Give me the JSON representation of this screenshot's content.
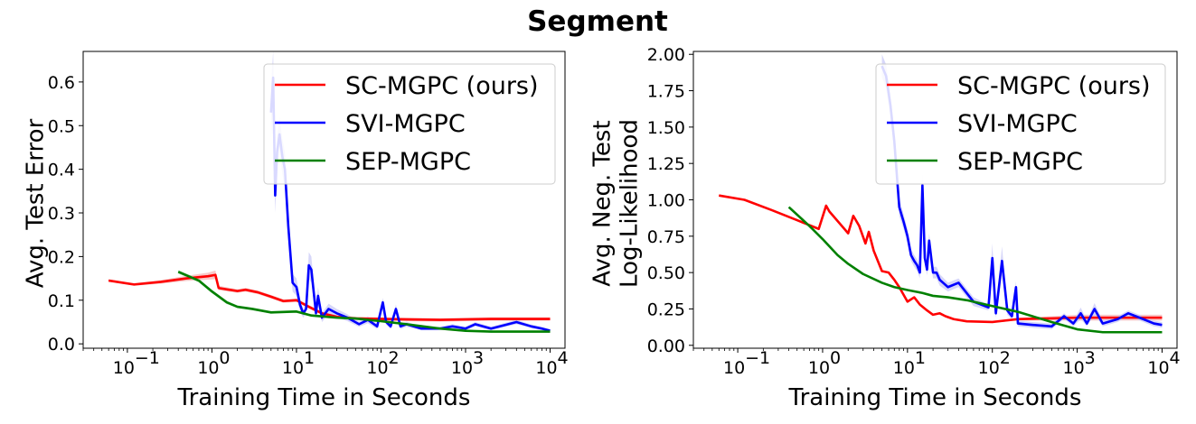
{
  "figure": {
    "title": "Segment"
  },
  "colors": {
    "sc": "#ff0000",
    "svi": "#0000ff",
    "sep": "#008000",
    "sc_band": "#f4b6b6",
    "svi_band": "#c9c9f7",
    "sep_band": "#b8dcb8"
  },
  "chart_data": [
    {
      "type": "line",
      "xlabel": "Training Time in Seconds",
      "ylabel_lines": [
        "Avg. Test Error"
      ],
      "xscale": "log",
      "xlim": [
        0.03,
        15000
      ],
      "ylim": [
        -0.01,
        0.67
      ],
      "yticks": [
        0.0,
        0.1,
        0.2,
        0.3,
        0.4,
        0.5,
        0.6
      ],
      "ytick_labels": [
        "0.0",
        "0.1",
        "0.2",
        "0.3",
        "0.4",
        "0.5",
        "0.6"
      ],
      "xticks": [
        0.1,
        1,
        10,
        100,
        1000,
        10000
      ],
      "xtick_labels": [
        "10",
        "10",
        "10",
        "10",
        "10",
        "10"
      ],
      "xtick_exponents": [
        "−1",
        "0",
        "1",
        "2",
        "3",
        "4"
      ],
      "legend": {
        "position": "top-right"
      },
      "series": [
        {
          "name": "SC-MGPC (ours)",
          "color": "#ff0000",
          "band_color": "#f4b6b6",
          "x": [
            0.06,
            0.12,
            0.25,
            0.5,
            0.9,
            1.1,
            1.2,
            2.0,
            2.5,
            3.5,
            5,
            7,
            10,
            14,
            20,
            30,
            50,
            100,
            200,
            500,
            1000,
            2000,
            5000,
            10000
          ],
          "y": [
            0.145,
            0.136,
            0.142,
            0.15,
            0.155,
            0.158,
            0.128,
            0.121,
            0.124,
            0.118,
            0.108,
            0.098,
            0.1,
            0.085,
            0.07,
            0.062,
            0.058,
            0.057,
            0.056,
            0.055,
            0.056,
            0.057,
            0.057,
            0.057
          ],
          "band": [
            0.003,
            0.003,
            0.004,
            0.006,
            0.008,
            0.01,
            0.005,
            0.004,
            0.004,
            0.004,
            0.004,
            0.004,
            0.004,
            0.004,
            0.004,
            0.004,
            0.004,
            0.004,
            0.004,
            0.004,
            0.004,
            0.004,
            0.004,
            0.004
          ]
        },
        {
          "name": "SVI-MGPC",
          "color": "#0000ff",
          "band_color": "#c9c9f7",
          "x": [
            5.0,
            5.3,
            5.6,
            5.9,
            6.3,
            6.8,
            7.3,
            8,
            9,
            10,
            11,
            12,
            13,
            14,
            15,
            17,
            18,
            20,
            24,
            30,
            40,
            55,
            70,
            90,
            105,
            115,
            130,
            150,
            170,
            200,
            300,
            500,
            700,
            1000,
            1300,
            2000,
            4000,
            6000,
            8000,
            10000
          ],
          "y": [
            0.53,
            0.61,
            0.34,
            0.44,
            0.48,
            0.43,
            0.4,
            0.27,
            0.14,
            0.13,
            0.09,
            0.07,
            0.08,
            0.18,
            0.17,
            0.07,
            0.11,
            0.06,
            0.08,
            0.07,
            0.06,
            0.045,
            0.055,
            0.04,
            0.095,
            0.05,
            0.04,
            0.08,
            0.04,
            0.045,
            0.035,
            0.035,
            0.04,
            0.035,
            0.045,
            0.035,
            0.05,
            0.04,
            0.035,
            0.03
          ],
          "band": [
            0.06,
            0.06,
            0.04,
            0.04,
            0.04,
            0.04,
            0.04,
            0.03,
            0.02,
            0.02,
            0.015,
            0.01,
            0.01,
            0.03,
            0.03,
            0.012,
            0.02,
            0.01,
            0.012,
            0.01,
            0.008,
            0.006,
            0.008,
            0.006,
            0.01,
            0.006,
            0.006,
            0.01,
            0.006,
            0.006,
            0.004,
            0.004,
            0.005,
            0.004,
            0.005,
            0.004,
            0.005,
            0.004,
            0.004,
            0.004
          ]
        },
        {
          "name": "SEP-MGPC",
          "color": "#008000",
          "band_color": "#b8dcb8",
          "x": [
            0.4,
            0.7,
            1.0,
            1.5,
            2.0,
            3.0,
            5.0,
            7.0,
            10,
            15,
            20,
            30,
            50,
            100,
            200,
            500,
            1000,
            2000,
            5000,
            10000
          ],
          "y": [
            0.165,
            0.145,
            0.12,
            0.095,
            0.085,
            0.08,
            0.072,
            0.073,
            0.074,
            0.065,
            0.063,
            0.06,
            0.058,
            0.052,
            0.045,
            0.035,
            0.03,
            0.028,
            0.028,
            0.028
          ],
          "band": [
            0.004,
            0.004,
            0.004,
            0.004,
            0.003,
            0.003,
            0.003,
            0.003,
            0.003,
            0.003,
            0.003,
            0.003,
            0.003,
            0.003,
            0.003,
            0.003,
            0.002,
            0.002,
            0.002,
            0.002
          ]
        }
      ]
    },
    {
      "type": "line",
      "xlabel": "Training Time in Seconds",
      "ylabel_lines": [
        "Avg. Neg. Test",
        "Log-Likelihood"
      ],
      "xscale": "log",
      "xlim": [
        0.03,
        15000
      ],
      "ylim": [
        -0.02,
        2.02
      ],
      "yticks": [
        0.0,
        0.25,
        0.5,
        0.75,
        1.0,
        1.25,
        1.5,
        1.75,
        2.0
      ],
      "ytick_labels": [
        "0.00",
        "0.25",
        "0.50",
        "0.75",
        "1.00",
        "1.25",
        "1.50",
        "1.75",
        "2.00"
      ],
      "xticks": [
        0.1,
        1,
        10,
        100,
        1000,
        10000
      ],
      "xtick_labels": [
        "10",
        "10",
        "10",
        "10",
        "10",
        "10"
      ],
      "xtick_exponents": [
        "−1",
        "0",
        "1",
        "2",
        "3",
        "4"
      ],
      "legend": {
        "position": "top-right"
      },
      "series": [
        {
          "name": "SC-MGPC (ours)",
          "color": "#ff0000",
          "band_color": "#f4b6b6",
          "x": [
            0.06,
            0.12,
            0.25,
            0.5,
            0.9,
            1.1,
            1.2,
            2.0,
            2.3,
            2.7,
            3.2,
            3.5,
            4.0,
            5.0,
            6.0,
            7.0,
            8.0,
            10,
            12,
            14,
            17,
            20,
            24,
            28,
            35,
            50,
            100,
            200,
            500,
            1000,
            2000,
            5000,
            10000
          ],
          "y": [
            1.03,
            1.0,
            0.93,
            0.86,
            0.8,
            0.96,
            0.92,
            0.77,
            0.89,
            0.82,
            0.7,
            0.78,
            0.65,
            0.51,
            0.5,
            0.45,
            0.4,
            0.3,
            0.33,
            0.28,
            0.24,
            0.21,
            0.22,
            0.2,
            0.18,
            0.165,
            0.16,
            0.18,
            0.185,
            0.19,
            0.19,
            0.19,
            0.19
          ],
          "band": [
            0.004,
            0.004,
            0.004,
            0.004,
            0.004,
            0.006,
            0.006,
            0.006,
            0.006,
            0.006,
            0.006,
            0.006,
            0.006,
            0.006,
            0.006,
            0.006,
            0.006,
            0.006,
            0.006,
            0.006,
            0.005,
            0.005,
            0.005,
            0.005,
            0.005,
            0.005,
            0.005,
            0.01,
            0.015,
            0.02,
            0.02,
            0.02,
            0.02
          ]
        },
        {
          "name": "SVI-MGPC",
          "color": "#0000ff",
          "band_color": "#c9c9f7",
          "x": [
            5.0,
            5.6,
            6.3,
            7.0,
            8.0,
            9.0,
            10,
            11,
            12,
            13,
            14,
            15,
            16,
            17,
            18,
            20,
            22,
            24,
            30,
            40,
            60,
            90,
            100,
            110,
            130,
            150,
            170,
            190,
            200,
            300,
            500,
            700,
            900,
            1100,
            1300,
            1600,
            2000,
            3000,
            4000,
            6000,
            8000,
            10000
          ],
          "y": [
            1.92,
            1.85,
            1.65,
            1.4,
            0.95,
            0.85,
            0.75,
            0.62,
            0.58,
            0.55,
            0.5,
            1.1,
            0.6,
            0.52,
            0.72,
            0.5,
            0.5,
            0.45,
            0.4,
            0.43,
            0.3,
            0.26,
            0.6,
            0.22,
            0.58,
            0.24,
            0.2,
            0.4,
            0.15,
            0.14,
            0.13,
            0.2,
            0.15,
            0.22,
            0.15,
            0.25,
            0.15,
            0.18,
            0.22,
            0.18,
            0.15,
            0.14
          ],
          "band": [
            0.08,
            0.08,
            0.08,
            0.07,
            0.06,
            0.05,
            0.05,
            0.04,
            0.04,
            0.04,
            0.04,
            0.08,
            0.04,
            0.04,
            0.05,
            0.04,
            0.04,
            0.04,
            0.03,
            0.03,
            0.03,
            0.02,
            0.1,
            0.03,
            0.1,
            0.03,
            0.02,
            0.04,
            0.02,
            0.02,
            0.02,
            0.02,
            0.02,
            0.04,
            0.02,
            0.04,
            0.02,
            0.02,
            0.02,
            0.02,
            0.02,
            0.02
          ]
        },
        {
          "name": "SEP-MGPC",
          "color": "#008000",
          "band_color": "#b8dcb8",
          "x": [
            0.4,
            0.7,
            1.0,
            1.5,
            2.0,
            3.0,
            5.0,
            7.0,
            10,
            15,
            20,
            30,
            50,
            100,
            200,
            500,
            1000,
            2000,
            5000,
            10000
          ],
          "y": [
            0.95,
            0.82,
            0.73,
            0.62,
            0.56,
            0.49,
            0.43,
            0.4,
            0.38,
            0.36,
            0.34,
            0.33,
            0.31,
            0.27,
            0.23,
            0.16,
            0.11,
            0.09,
            0.09,
            0.09
          ],
          "band": [
            0.006,
            0.006,
            0.006,
            0.006,
            0.005,
            0.005,
            0.005,
            0.005,
            0.005,
            0.005,
            0.005,
            0.005,
            0.005,
            0.005,
            0.005,
            0.005,
            0.004,
            0.004,
            0.004,
            0.004
          ]
        }
      ]
    }
  ]
}
